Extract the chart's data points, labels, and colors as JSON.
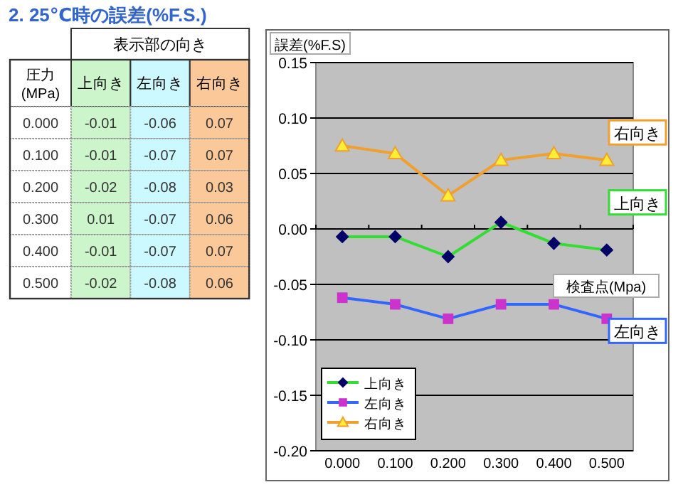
{
  "chart_data": [
    {
      "type": "heatmap",
      "title": "2. 25℃時の誤差(%F.S.)",
      "xlabel": "表示部の向き",
      "ylabel": "圧力(MPa)",
      "categories": [
        "上向き",
        "左向き",
        "右向き"
      ],
      "y_categories": [
        "0.000",
        "0.100",
        "0.200",
        "0.300",
        "0.400",
        "0.500"
      ],
      "cells": [
        [
          -0.01,
          -0.06,
          0.07
        ],
        [
          -0.01,
          -0.07,
          0.07
        ],
        [
          -0.02,
          -0.08,
          0.03
        ],
        [
          0.01,
          -0.07,
          0.06
        ],
        [
          -0.01,
          -0.07,
          0.07
        ],
        [
          -0.02,
          -0.08,
          0.06
        ]
      ],
      "cell_labels": [
        [
          "-0.01",
          "-0.06",
          "0.07"
        ],
        [
          "-0.01",
          "-0.07",
          "0.07"
        ],
        [
          "-0.02",
          "-0.08",
          "0.03"
        ],
        [
          "0.01",
          "-0.07",
          "0.06"
        ],
        [
          "-0.01",
          "-0.07",
          "0.07"
        ],
        [
          "-0.02",
          "-0.08",
          "0.06"
        ]
      ]
    },
    {
      "type": "line",
      "ylabel": "誤差(%F.S)",
      "xlabel": "検査点(Mpa)",
      "categories": [
        "0.000",
        "0.100",
        "0.200",
        "0.300",
        "0.400",
        "0.500"
      ],
      "ylim": [
        -0.2,
        0.15
      ],
      "yticks": [
        {
          "value": 0.15,
          "label": "0.15"
        },
        {
          "value": 0.1,
          "label": "0.10"
        },
        {
          "value": 0.05,
          "label": "0.05"
        },
        {
          "value": 0,
          "label": "0.00"
        },
        {
          "value": -0.05,
          "label": "-0.05"
        },
        {
          "value": -0.1,
          "label": "-0.10"
        },
        {
          "value": -0.15,
          "label": "-0.15"
        },
        {
          "value": -0.2,
          "label": "-0.20"
        }
      ],
      "grid": "y",
      "legend": "bottom left",
      "series": [
        {
          "name": "上向き",
          "color": "#33dd33",
          "marker": "diamond",
          "values": [
            -0.007,
            -0.007,
            -0.025,
            0.006,
            -0.013,
            -0.019
          ]
        },
        {
          "name": "左向き",
          "color": "#3366ff",
          "marker": "square",
          "values": [
            -0.062,
            -0.068,
            -0.081,
            -0.068,
            -0.068,
            -0.081
          ]
        },
        {
          "name": "右向き",
          "color": "#f0a030",
          "marker": "triangle",
          "values": [
            0.075,
            0.068,
            0.03,
            0.062,
            0.068,
            0.062
          ]
        }
      ]
    }
  ]
}
